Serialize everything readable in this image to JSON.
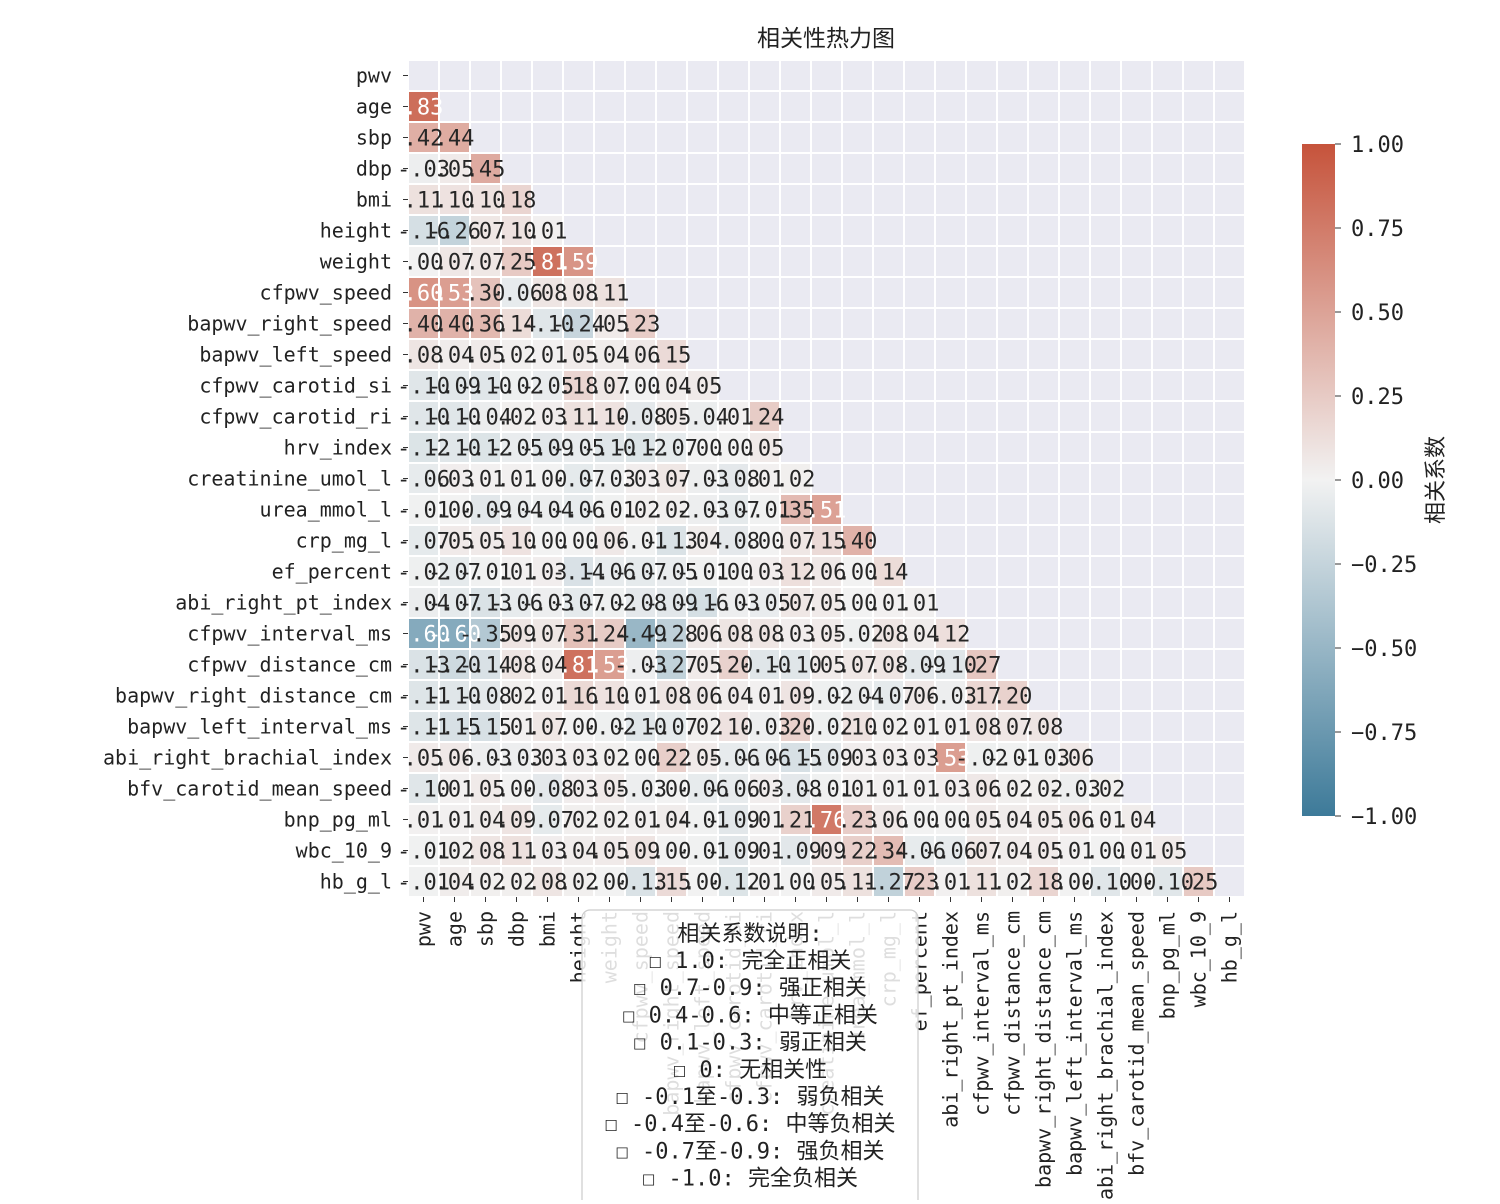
{
  "chart_data": {
    "type": "heatmap",
    "title": "相关性热力图",
    "variables": [
      "pwv",
      "age",
      "sbp",
      "dbp",
      "bmi",
      "height",
      "weight",
      "cfpwv_speed",
      "bapwv_right_speed",
      "bapwv_left_speed",
      "cfpwv_carotid_si",
      "cfpwv_carotid_ri",
      "hrv_index",
      "creatinine_umol_l",
      "urea_mmol_l",
      "crp_mg_l",
      "ef_percent",
      "abi_right_pt_index",
      "cfpwv_interval_ms",
      "cfpwv_distance_cm",
      "bapwv_right_distance_cm",
      "bapwv_left_interval_ms",
      "abi_right_brachial_index",
      "bfv_carotid_mean_speed",
      "bnp_pg_ml",
      "wbc_10_9",
      "hb_g_l"
    ],
    "x_tick_labels": [
      "pwv",
      "age",
      "sbp",
      "dbp",
      "bmi",
      "height",
      "weight",
      "cfpwv_speed",
      "bapwv_right_speed",
      "bapwv_left_speed",
      "cfpwv_carotid_si",
      "cfpwv_carotid_ri",
      "hrv_index",
      "creatinine_umol_l",
      "urea_mmol_l",
      "crp_mg_l",
      "ef_percent",
      "abi_right_pt_index",
      "cfpwv_interval_ms",
      "cfpwv_distance_cm",
      "bapwv_right_distance_cm",
      "bapwv_left_interval_ms",
      "abi_right_brachial_index",
      "bfv_carotid_mean_speed",
      "bnp_pg_ml",
      "wbc_10_9",
      "hb_g_l"
    ],
    "y_tick_labels": [
      "pwv",
      "age",
      "sbp",
      "dbp",
      "bmi",
      "height",
      "weight",
      "cfpwv_speed",
      "bapwv_right_speed",
      "bapwv_left_speed",
      "cfpwv_carotid_si",
      "cfpwv_carotid_ri",
      "hrv_index",
      "creatinine_umol_l",
      "urea_mmol_l",
      "crp_mg_l",
      "ef_percent",
      "abi_right_pt_index",
      "cfpwv_interval_ms",
      "cfpwv_distance_cm",
      "bapwv_right_distance_cm",
      "bapwv_left_interval_ms",
      "abi_right_brachial_index",
      "bfv_carotid_mean_speed",
      "bnp_pg_ml",
      "wbc_10_9",
      "hb_g_l"
    ],
    "mask": "upper-triangle",
    "lower_triangle_values": [
      [
        0.83
      ],
      [
        0.42,
        0.44
      ],
      [
        -0.03,
        0.05,
        0.45
      ],
      [
        0.11,
        0.1,
        0.1,
        0.18
      ],
      [
        -0.16,
        -0.26,
        0.07,
        0.1,
        0.01
      ],
      [
        -0.0,
        0.07,
        0.07,
        0.25,
        0.81,
        0.59
      ],
      [
        0.6,
        0.53,
        0.3,
        -0.06,
        0.08,
        0.08,
        0.11
      ],
      [
        0.4,
        0.4,
        0.36,
        0.14,
        -0.1,
        -0.24,
        0.05,
        0.23
      ],
      [
        0.08,
        0.04,
        0.05,
        0.02,
        0.01,
        0.05,
        0.04,
        0.06,
        0.15
      ],
      [
        -0.1,
        -0.09,
        -0.1,
        -0.02,
        -0.05,
        0.18,
        0.07,
        -0.0,
        0.04,
        0.05
      ],
      [
        -0.1,
        -0.1,
        -0.04,
        0.02,
        0.03,
        0.11,
        0.1,
        -0.08,
        0.05,
        -0.04,
        0.01,
        0.24
      ],
      [
        -0.12,
        -0.1,
        -0.12,
        -0.05,
        -0.09,
        -0.05,
        -0.1,
        -0.12,
        -0.07,
        0.0,
        -0.0,
        0.05
      ],
      [
        -0.06,
        0.03,
        0.01,
        0.01,
        -0.0,
        -0.07,
        -0.03,
        0.03,
        0.07,
        -0.03,
        -0.08,
        0.01,
        0.02
      ],
      [
        -0.01,
        0.0,
        -0.09,
        -0.04,
        -0.04,
        -0.06,
        -0.01,
        0.02,
        0.02,
        -0.03,
        -0.07,
        -0.01,
        0.35,
        0.51
      ],
      [
        -0.07,
        0.05,
        0.05,
        0.1,
        0.0,
        0.0,
        0.06,
        -0.01,
        -0.13,
        0.04,
        -0.08,
        -0.0,
        0.07,
        0.15,
        0.4
      ],
      [
        -0.02,
        -0.07,
        -0.01,
        0.01,
        0.03,
        -0.14,
        -0.06,
        -0.07,
        -0.05,
        -0.01,
        -0.0,
        0.03,
        0.12,
        0.06,
        -0.0,
        0.14
      ],
      [
        -0.04,
        -0.07,
        -0.13,
        -0.06,
        -0.03,
        -0.07,
        -0.02,
        -0.08,
        -0.09,
        -0.16,
        -0.03,
        -0.05,
        0.07,
        0.05,
        -0.0,
        0.01,
        0.01
      ],
      [
        -0.6,
        -0.6,
        -0.35,
        0.09,
        0.07,
        0.31,
        0.24,
        -0.49,
        -0.28,
        0.06,
        0.08,
        0.08,
        0.03,
        0.05,
        -0.02,
        0.08,
        0.04,
        0.12
      ],
      [
        -0.13,
        -0.2,
        -0.14,
        0.08,
        0.04,
        0.81,
        0.53,
        -0.03,
        -0.27,
        0.05,
        0.2,
        -0.1,
        -0.1,
        0.05,
        0.07,
        0.08,
        -0.09,
        -0.1,
        0.27
      ],
      [
        -0.11,
        -0.1,
        -0.08,
        0.02,
        0.01,
        0.16,
        0.1,
        0.01,
        0.08,
        0.06,
        0.04,
        0.01,
        0.09,
        -0.02,
        -0.04,
        -0.07,
        0.06,
        -0.03,
        0.17,
        0.2
      ],
      [
        -0.11,
        -0.15,
        -0.15,
        0.01,
        0.07,
        0.0,
        -0.02,
        -0.1,
        -0.07,
        0.02,
        0.1,
        -0.03,
        0.2,
        -0.02,
        0.1,
        0.02,
        0.01,
        0.01,
        0.08,
        0.07,
        0.08
      ],
      [
        0.05,
        0.06,
        -0.03,
        -0.03,
        0.03,
        0.03,
        0.02,
        -0.0,
        0.22,
        0.05,
        -0.06,
        -0.06,
        -0.15,
        -0.09,
        0.03,
        0.03,
        0.03,
        0.53,
        -0.02,
        -0.01,
        -0.03,
        0.06
      ],
      [
        -0.1,
        0.01,
        0.05,
        -0.0,
        -0.08,
        0.03,
        0.05,
        -0.03,
        -0.0,
        -0.06,
        -0.06,
        0.03,
        -0.08,
        -0.01,
        0.01,
        0.01,
        0.01,
        0.03,
        0.06,
        0.02,
        0.02,
        -0.03,
        0.02
      ],
      [
        0.01,
        0.01,
        0.04,
        0.09,
        -0.07,
        0.02,
        0.02,
        0.01,
        0.04,
        -0.01,
        -0.09,
        0.01,
        0.21,
        0.76,
        0.23,
        0.06,
        -0.0,
        -0.0,
        0.05,
        0.04,
        0.05,
        0.06,
        0.01,
        0.04
      ],
      [
        -0.01,
        0.02,
        0.08,
        0.11,
        0.03,
        0.04,
        0.05,
        0.09,
        0.0,
        -0.01,
        -0.09,
        0.01,
        -0.09,
        0.09,
        0.22,
        0.34,
        -0.06,
        -0.06,
        0.07,
        0.04,
        0.05,
        0.01,
        0.0,
        0.01,
        0.05
      ],
      [
        -0.01,
        0.04,
        0.02,
        0.02,
        0.08,
        0.02,
        0.0,
        -0.13,
        0.15,
        0.0,
        -0.12,
        0.01,
        0.0,
        0.05,
        0.11,
        -0.27,
        0.23,
        0.01,
        0.11,
        0.02,
        0.18,
        0.0,
        -0.1,
        0.0,
        -0.1,
        0.25
      ]
    ],
    "vmin": -1.0,
    "vmax": 1.0,
    "colorbar": {
      "label": "相关系数",
      "ticks": [
        "1.00",
        "0.75",
        "0.50",
        "0.25",
        "0.00",
        "−0.25",
        "−0.50",
        "−0.75",
        "−1.00"
      ],
      "colors": {
        "negative": "#3d7a99",
        "neutral": "#f2f2f2",
        "positive": "#c6533b"
      }
    },
    "legend": {
      "placement": "bottom-center",
      "title": "相关系数说明:",
      "items": [
        "1.0: 完全正相关",
        "0.7-0.9: 强正相关",
        "0.4-0.6: 中等正相关",
        "0.1-0.3: 弱正相关",
        "0: 无相关性",
        "-0.1至-0.3: 弱负相关",
        "-0.4至-0.6: 中等负相关",
        "-0.7至-0.9: 强负相关",
        "-1.0: 完全负相关"
      ]
    },
    "grid": true,
    "background_color": "#eaeaf2"
  }
}
